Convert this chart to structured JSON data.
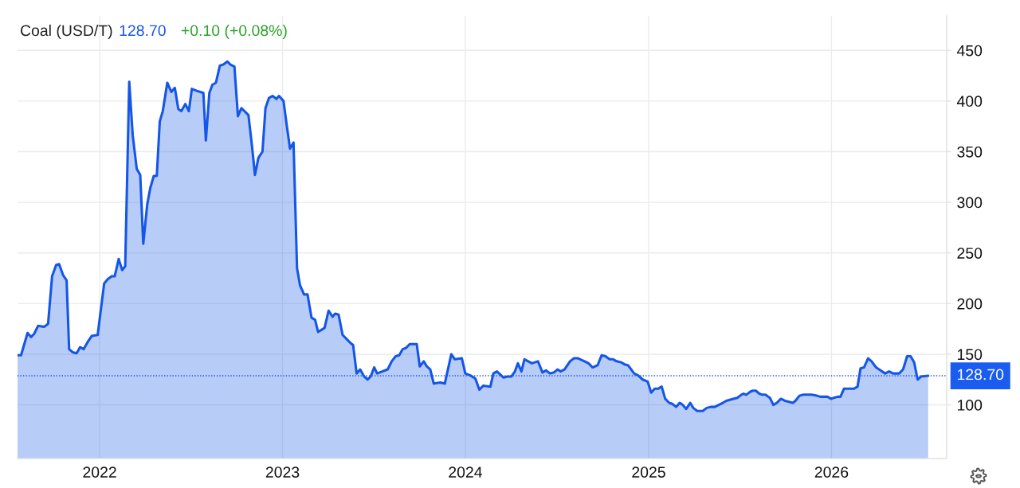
{
  "chart_data": {
    "type": "area",
    "title": "Coal (USD/T)",
    "annotations": [
      "128.70",
      "+0.10 (+0.08%)"
    ],
    "x": [
      "2021-07-21",
      "2021-07-28",
      "2021-08-10",
      "2021-08-17",
      "2021-08-23",
      "2021-08-31",
      "2021-09-12",
      "2021-09-20",
      "2021-09-28",
      "2021-10-06",
      "2021-10-12",
      "2021-10-20",
      "2021-10-27",
      "2021-11-01",
      "2021-11-08",
      "2021-11-16",
      "2021-11-23",
      "2021-11-30",
      "2021-12-08",
      "2021-12-16",
      "2021-12-28",
      "2022-01-10",
      "2022-01-17",
      "2022-01-25",
      "2022-01-31",
      "2022-02-08",
      "2022-02-15",
      "2022-02-21",
      "2022-03-01",
      "2022-03-08",
      "2022-03-16",
      "2022-03-23",
      "2022-03-29",
      "2022-04-06",
      "2022-04-12",
      "2022-04-19",
      "2022-04-25",
      "2022-05-01",
      "2022-05-07",
      "2022-05-16",
      "2022-05-24",
      "2022-05-31",
      "2022-06-07",
      "2022-06-13",
      "2022-06-21",
      "2022-06-28",
      "2022-07-04",
      "2022-07-14",
      "2022-07-27",
      "2022-08-01",
      "2022-08-08",
      "2022-08-14",
      "2022-08-21",
      "2022-08-29",
      "2022-09-05",
      "2022-09-13",
      "2022-09-19",
      "2022-09-27",
      "2022-10-04",
      "2022-10-11",
      "2022-10-25",
      "2022-11-01",
      "2022-11-07",
      "2022-11-14",
      "2022-11-22",
      "2022-11-28",
      "2022-12-05",
      "2022-12-12",
      "2022-12-20",
      "2022-12-25",
      "2023-01-03",
      "2023-01-10",
      "2023-01-16",
      "2023-01-23",
      "2023-01-30",
      "2023-02-05",
      "2023-02-13",
      "2023-02-20",
      "2023-02-28",
      "2023-03-07",
      "2023-03-13",
      "2023-03-26",
      "2023-04-03",
      "2023-04-11",
      "2023-04-16",
      "2023-04-23",
      "2023-05-01",
      "2023-05-09",
      "2023-05-17",
      "2023-05-22",
      "2023-05-29",
      "2023-06-05",
      "2023-06-13",
      "2023-06-20",
      "2023-06-26",
      "2023-07-03",
      "2023-07-09",
      "2023-07-30",
      "2023-08-07",
      "2023-08-15",
      "2023-08-22",
      "2023-08-29",
      "2023-09-04",
      "2023-09-12",
      "2023-09-26",
      "2023-10-02",
      "2023-10-10",
      "2023-10-16",
      "2023-10-23",
      "2023-10-30",
      "2023-11-12",
      "2023-11-21",
      "2023-12-04",
      "2023-12-11",
      "2023-12-25",
      "2024-01-01",
      "2024-01-11",
      "2024-01-21",
      "2024-01-29",
      "2024-02-06",
      "2024-02-20",
      "2024-02-26",
      "2024-03-04",
      "2024-03-17",
      "2024-03-25",
      "2024-04-02",
      "2024-04-09",
      "2024-04-15",
      "2024-04-22",
      "2024-04-28",
      "2024-05-13",
      "2024-05-25",
      "2024-06-03",
      "2024-06-10",
      "2024-06-18",
      "2024-06-26",
      "2024-07-03",
      "2024-07-09",
      "2024-07-17",
      "2024-07-28",
      "2024-08-05",
      "2024-08-13",
      "2024-08-26",
      "2024-09-03",
      "2024-09-11",
      "2024-09-21",
      "2024-09-29",
      "2024-10-07",
      "2024-10-15",
      "2024-10-22",
      "2024-10-29",
      "2024-11-07",
      "2024-11-14",
      "2024-11-21",
      "2024-12-03",
      "2024-12-11",
      "2024-12-20",
      "2024-12-30",
      "2025-01-06",
      "2025-01-13",
      "2025-01-20",
      "2025-01-27",
      "2025-02-03",
      "2025-02-11",
      "2025-02-17",
      "2025-02-25",
      "2025-03-04",
      "2025-03-10",
      "2025-03-17",
      "2025-03-25",
      "2025-03-31",
      "2025-04-08",
      "2025-04-19",
      "2025-04-27",
      "2025-05-05",
      "2025-05-13",
      "2025-05-21",
      "2025-05-29",
      "2025-06-05",
      "2025-06-12",
      "2025-06-19",
      "2025-06-27",
      "2025-07-05",
      "2025-07-09",
      "2025-07-15",
      "2025-07-23",
      "2025-07-28",
      "2025-08-03",
      "2025-08-10",
      "2025-08-16",
      "2025-08-22",
      "2025-08-31",
      "2025-09-07",
      "2025-09-14",
      "2025-09-22",
      "2025-09-30",
      "2025-10-08",
      "2025-10-16",
      "2025-10-21",
      "2025-10-29",
      "2025-11-06",
      "2025-11-22",
      "2025-12-03",
      "2025-12-10",
      "2025-12-24",
      "2025-12-31",
      "2026-01-06",
      "2026-01-13",
      "2026-01-19",
      "2026-01-26",
      "2026-02-02",
      "2026-02-08",
      "2026-02-15",
      "2026-02-22",
      "2026-02-28",
      "2026-03-07",
      "2026-03-15",
      "2026-03-22",
      "2026-03-31",
      "2026-04-09",
      "2026-04-18",
      "2026-04-26",
      "2026-05-04",
      "2026-05-16",
      "2026-05-24",
      "2026-06-01",
      "2026-06-08",
      "2026-06-15",
      "2026-06-22",
      "2026-06-29",
      "2026-07-13"
    ],
    "series": [
      {
        "color": "#1456e8",
        "values": [
          149,
          149,
          171,
          167,
          170,
          178,
          177,
          180,
          227,
          238,
          239,
          228,
          223,
          155,
          152,
          151,
          157,
          155,
          162,
          168,
          169,
          220,
          224,
          227,
          227,
          244,
          233,
          237,
          419,
          366,
          333,
          327,
          259,
          298,
          314,
          326,
          326,
          380,
          390,
          418,
          409,
          413,
          392,
          390,
          397,
          390,
          412,
          410,
          408,
          361,
          408,
          416,
          418,
          435,
          436,
          439,
          436,
          434,
          385,
          393,
          386,
          356,
          327,
          344,
          350,
          393,
          403,
          405,
          402,
          405,
          400,
          374,
          353,
          359,
          235,
          218,
          209,
          209,
          186,
          184,
          172,
          176,
          193,
          187,
          190,
          189,
          169,
          165,
          161,
          159,
          131,
          135,
          128,
          125,
          128,
          137,
          131,
          135,
          143,
          148,
          149,
          155,
          156,
          160,
          160,
          138,
          143,
          138,
          135,
          121,
          122,
          121,
          150,
          145,
          146,
          131,
          129,
          126,
          115,
          119,
          118,
          131,
          133,
          127,
          128,
          128,
          133,
          141,
          133,
          145,
          141,
          143,
          132,
          134,
          131,
          132,
          135,
          133,
          135,
          143,
          146,
          146,
          143,
          141,
          137,
          139,
          149,
          148,
          145,
          145,
          143,
          142,
          140,
          139,
          131,
          129,
          125,
          123,
          112,
          116,
          116,
          118,
          106,
          102,
          101,
          98,
          102,
          100,
          96,
          102,
          97,
          94,
          94,
          97,
          98,
          98,
          100,
          102,
          104,
          105,
          106,
          107,
          110,
          111,
          110,
          113,
          114,
          114,
          111,
          110,
          110,
          107,
          100,
          102,
          106,
          104,
          103,
          102,
          104,
          109,
          110,
          110,
          109,
          108,
          108,
          106,
          107,
          108,
          108,
          116,
          116,
          116,
          116,
          118,
          136,
          137,
          146,
          143,
          137,
          134,
          131,
          133,
          131,
          131,
          135,
          148,
          148,
          142,
          125,
          128,
          128.7
        ]
      }
    ],
    "xlim": [
      "2021-07-21",
      "2026-08-19"
    ],
    "ylim": [
      47,
      484
    ],
    "xticks": [
      "2022",
      "2023",
      "2024",
      "2025",
      "2026"
    ],
    "yticks": [
      100,
      150,
      200,
      250,
      300,
      350,
      400,
      450
    ],
    "grid": true,
    "ref_lines": [
      {
        "axis": "y",
        "value": 128.7,
        "label": "128.70",
        "color": "#1a5cf0",
        "line_style": "dotted"
      }
    ]
  }
}
